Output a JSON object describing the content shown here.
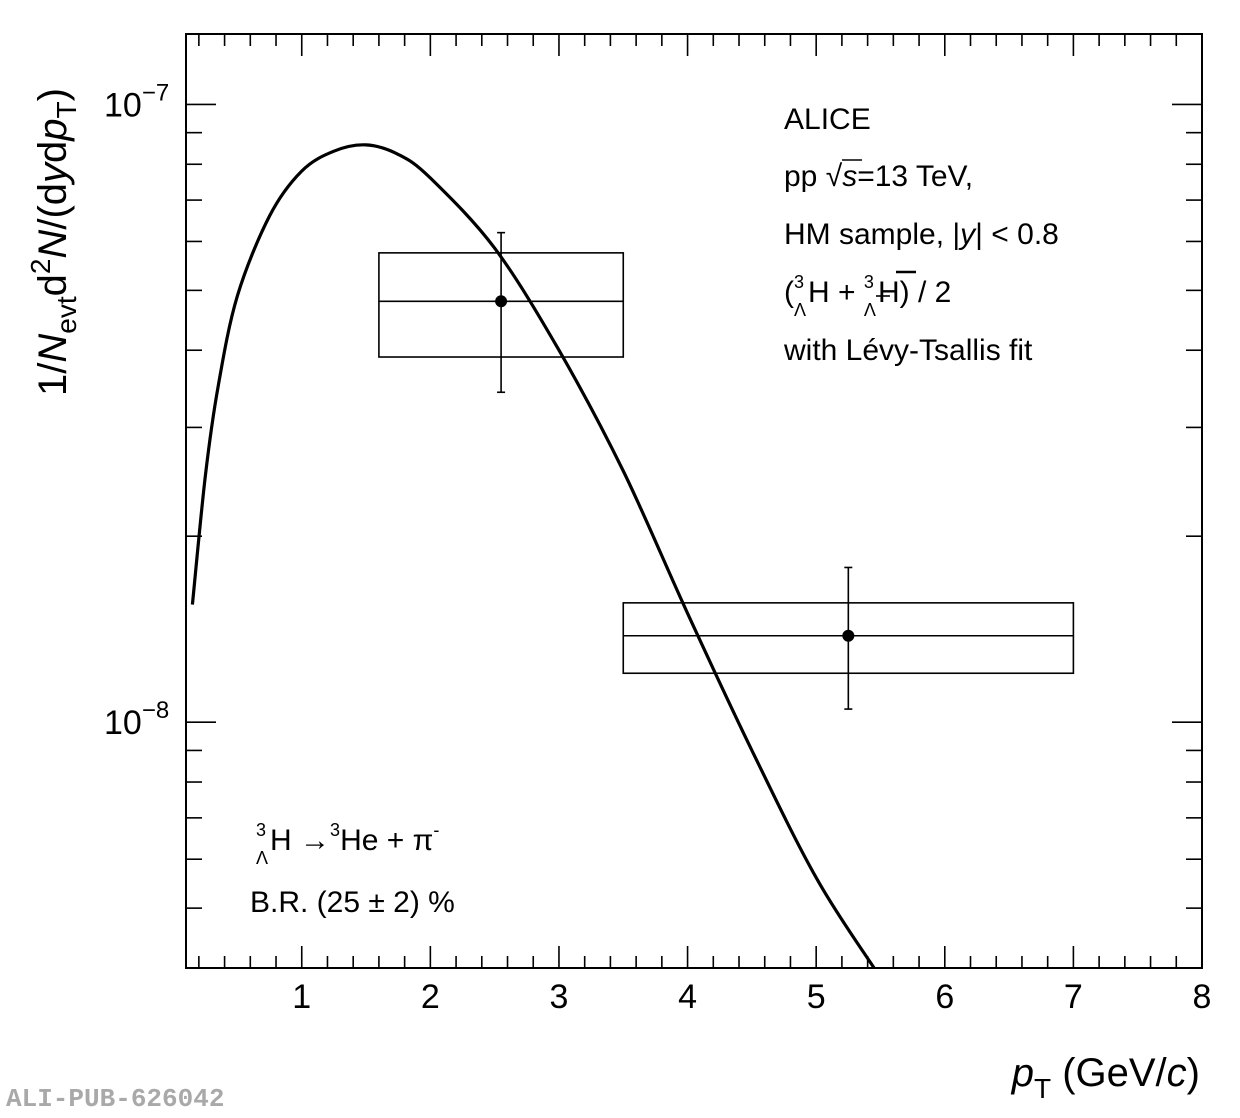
{
  "chart_data": {
    "type": "scatter",
    "scale_y": "log",
    "xlim": [
      0.1,
      8
    ],
    "ylim": [
      4e-09,
      1.3e-07
    ],
    "xticks": [
      1,
      2,
      3,
      4,
      5,
      6,
      7,
      8
    ],
    "xtick_labels": [
      "1",
      "2",
      "3",
      "4",
      "5",
      "6",
      "7",
      "8"
    ],
    "ytick_major": [
      {
        "value": 1e-08,
        "base": "10",
        "exp": "−8"
      },
      {
        "value": 1e-07,
        "base": "10",
        "exp": "−7"
      }
    ],
    "xlabel": {
      "var": "p",
      "sub": "T",
      "unit_open": " (GeV/",
      "unit_var": "c",
      "unit_close": ")"
    },
    "ylabel": {
      "p1": "1/",
      "v1": "N",
      "s1": "evt",
      "p2": "d",
      "sup2": "2",
      "v2": "N",
      "p3": "/(d",
      "v3": "y",
      "p4": "d",
      "v4": "p",
      "s4": "T",
      "p5": ")"
    },
    "series": [
      {
        "type": "points",
        "points": [
          {
            "x": 2.55,
            "y": 4.8e-08,
            "stat_err": [
              3.42e-08,
              6.2e-08
            ],
            "sys_box": {
              "x": [
                1.6,
                3.5
              ],
              "y": [
                3.9e-08,
                5.75e-08
              ]
            }
          },
          {
            "x": 5.25,
            "y": 1.38e-08,
            "stat_err": [
              1.05e-08,
              1.78e-08
            ],
            "sys_box": {
              "x": [
                3.5,
                7.0
              ],
              "y": [
                1.2e-08,
                1.56e-08
              ]
            }
          }
        ]
      },
      {
        "type": "line",
        "fit": "Lévy-Tsallis",
        "x": [
          0.15,
          0.25,
          0.35,
          0.5,
          0.75,
          1.0,
          1.25,
          1.5,
          1.75,
          2.0,
          2.5,
          3.0,
          3.5,
          4.0,
          4.5,
          5.0,
          5.45
        ],
        "y": [
          1.55e-08,
          2.5e-08,
          3.5e-08,
          4.9e-08,
          6.6e-08,
          7.8e-08,
          8.4e-08,
          8.6e-08,
          8.3e-08,
          7.6e-08,
          5.85e-08,
          4e-08,
          2.55e-08,
          1.5e-08,
          9e-09,
          5.6e-09,
          4e-09
        ]
      }
    ],
    "legend_top": {
      "line1": "ALICE",
      "line2_pre": "pp ",
      "line2_sqrt": "√",
      "line2_var": "s",
      "line2_post": "=13 TeV,",
      "line3_pre": "HM sample, |",
      "line3_var": "y",
      "line3_post": "| < 0.8",
      "line4_open": "(",
      "line4_sup": "3",
      "line4_sub": "Λ",
      "line4_H": "H + ",
      "line4_sup2": "3",
      "line4_sub2": "Λ",
      "line4_Hbar": "H",
      "line4_close": ") / 2",
      "line5": "with Lévy-Tsallis fit"
    },
    "legend_bottom": {
      "sup": "3",
      "sub": "Λ",
      "text1": "H →",
      "sup2": "3",
      "text2": "He + π",
      "sup3": "-",
      "line2": "B.R. (25 ± 2) %"
    },
    "watermark": "ALI-PUB-626042"
  }
}
